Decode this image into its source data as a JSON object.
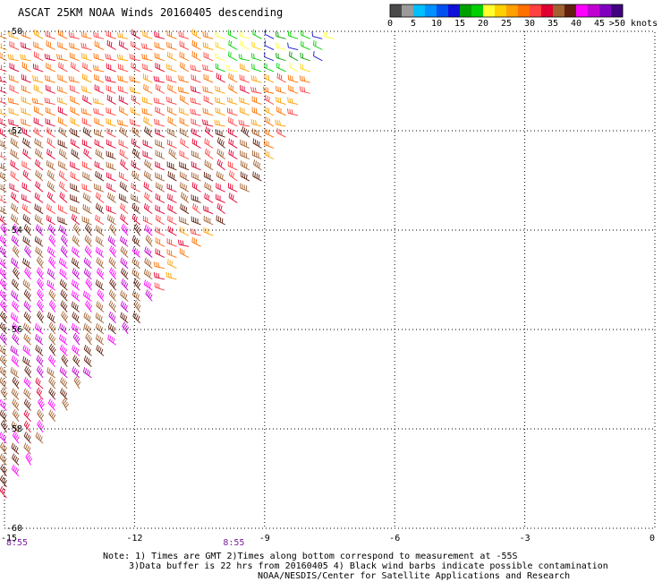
{
  "title": "ASCAT 25KM NOAA Winds 20160405 descending",
  "legend": {
    "colors": [
      "#4a4a4a",
      "#9a9a9a",
      "#00bfff",
      "#0090ff",
      "#0050f0",
      "#1010d8",
      "#00a000",
      "#00d000",
      "#ffff30",
      "#ffd000",
      "#ffa000",
      "#ff7000",
      "#ff4040",
      "#e00030",
      "#a06030",
      "#602010",
      "#ff00ff",
      "#c000d0",
      "#8000c0",
      "#400080"
    ],
    "labels": [
      "0",
      "5",
      "10",
      "15",
      "20",
      "25",
      "30",
      "35",
      "40",
      "45",
      ">50 knots"
    ]
  },
  "notes": {
    "line1": "Note: 1) Times are GMT 2)Times along bottom correspond to measurement at -55S",
    "line2": "3)Data buffer is 22 hrs from 20160405 4) Black wind barbs indicate possible contamination",
    "credit": "NOAA/NESDIS/Center for Satellite Applications and Research"
  },
  "chart_data": {
    "type": "wind_barb_map",
    "title": "ASCAT 25KM NOAA Winds 20160405 descending",
    "xlim": [
      -15,
      0
    ],
    "ylim": [
      -60,
      -50
    ],
    "x_ticks": [
      "-15",
      "-12",
      "-9",
      "-6",
      "-3",
      "0"
    ],
    "x_tick_values": [
      -15,
      -12,
      -9,
      -6,
      -3,
      0
    ],
    "y_ticks": [
      "-50",
      "-52",
      "-54",
      "-56",
      "-58",
      "-60"
    ],
    "y_tick_values": [
      -50,
      -52,
      -54,
      -56,
      -58,
      -60
    ],
    "grid": true,
    "time_labels": [
      {
        "text": "8:55",
        "lon": -15
      },
      {
        "text": "8:55",
        "lon": -10
      }
    ],
    "swath_edge": [
      [
        -7.2,
        -50
      ],
      [
        -9,
        -53
      ],
      [
        -12,
        -56
      ],
      [
        -13,
        -57
      ],
      [
        -15,
        -59.5
      ]
    ],
    "wind_regions": [
      {
        "lon": [
          -15,
          -9
        ],
        "lat": [
          -52,
          -50
        ],
        "speed_kt": 30,
        "dir_deg": 290
      },
      {
        "lon": [
          -10,
          -7.2
        ],
        "lat": [
          -51,
          -50
        ],
        "speed_kt": 22,
        "dir_deg": 290
      },
      {
        "lon": [
          -9,
          -7.5
        ],
        "lat": [
          -50.6,
          -50
        ],
        "speed_kt": 17,
        "dir_deg": 290
      },
      {
        "lon": [
          -15,
          -9
        ],
        "lat": [
          -54,
          -52
        ],
        "speed_kt": 35,
        "dir_deg": 300
      },
      {
        "lon": [
          -15,
          -11.5
        ],
        "lat": [
          -57,
          -54
        ],
        "speed_kt": 40,
        "dir_deg": 315
      },
      {
        "lon": [
          -15,
          -13
        ],
        "lat": [
          -59.5,
          -57
        ],
        "speed_kt": 38,
        "dir_deg": 320
      }
    ]
  }
}
